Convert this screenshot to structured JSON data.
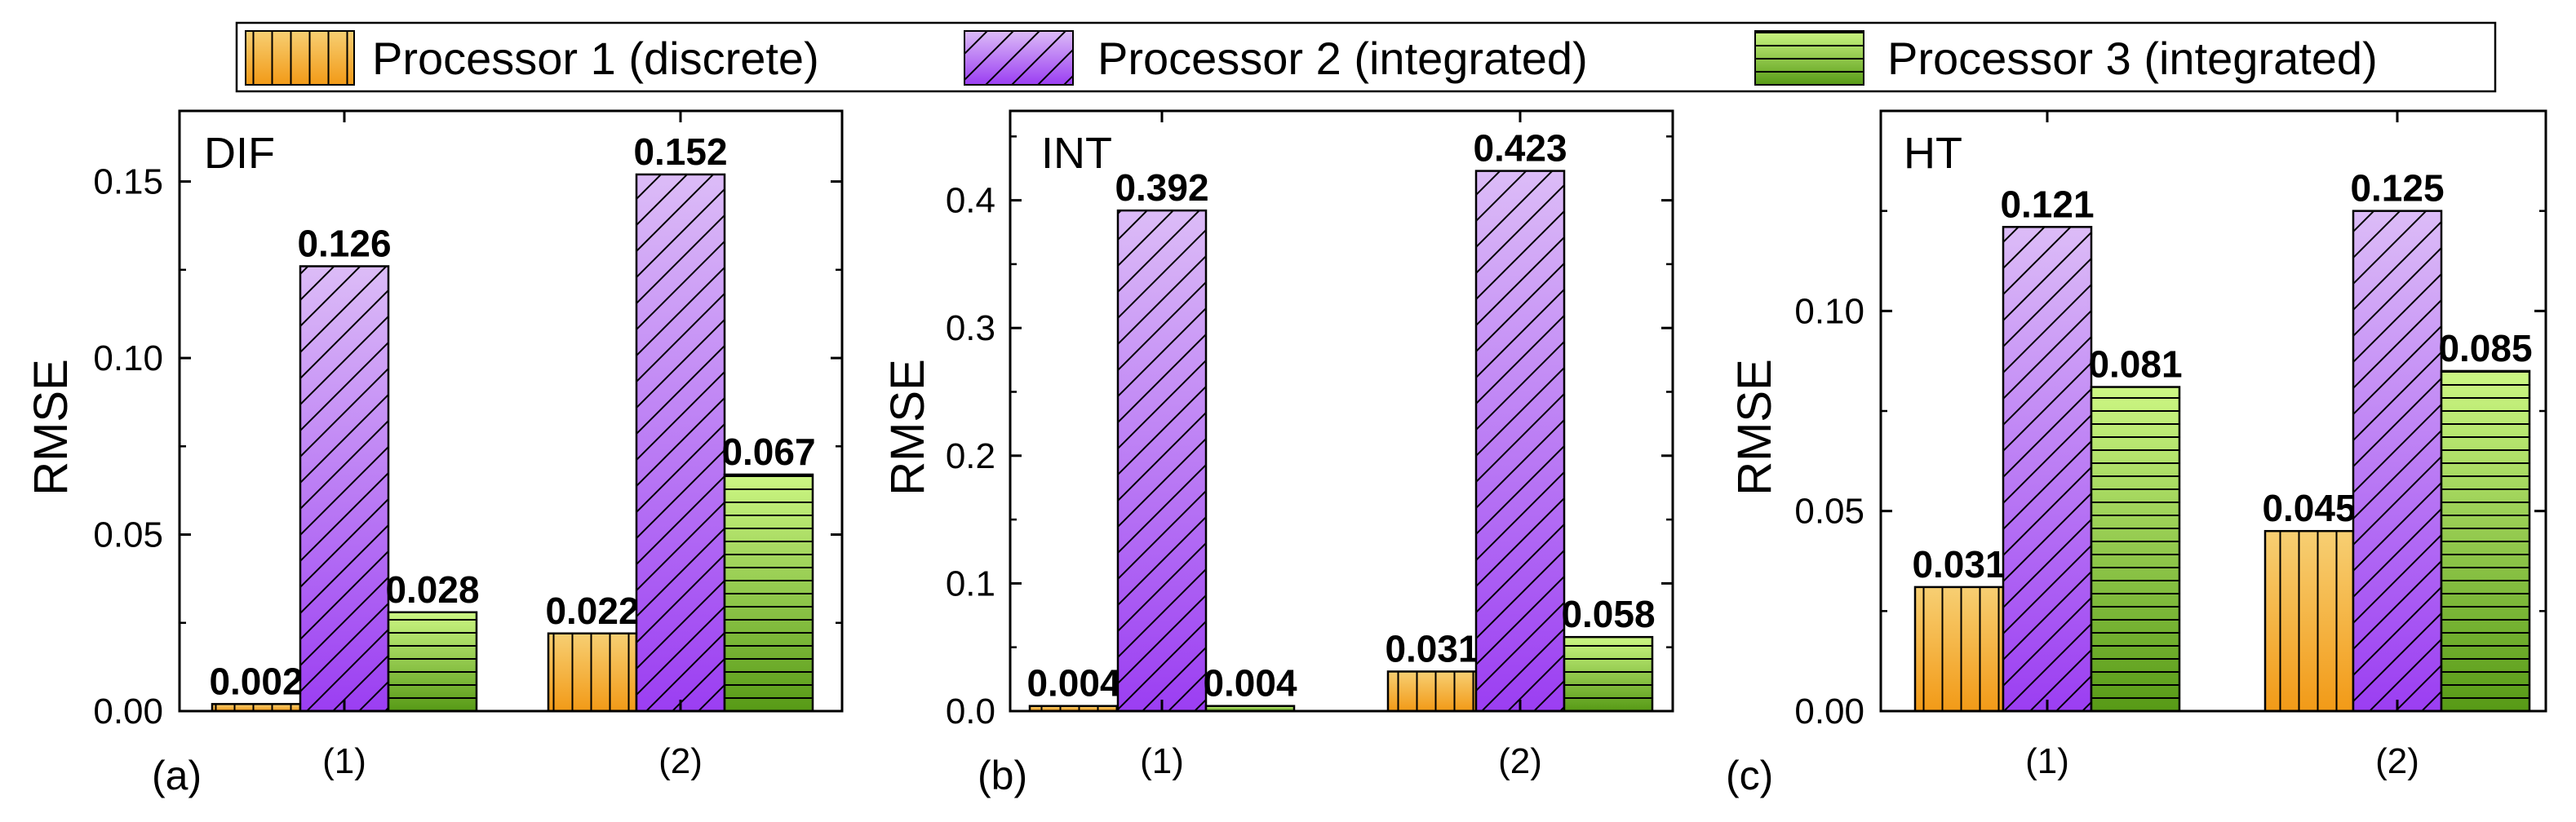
{
  "chart_data": [
    {
      "type": "bar",
      "panel": "(a)",
      "title": "DIF",
      "ylabel": "RMSE",
      "categories": [
        "(1)",
        "(2)"
      ],
      "ylim": [
        0,
        0.17
      ],
      "yticks": [
        0.0,
        0.05,
        0.1,
        0.15
      ],
      "ytick_labels": [
        "0.00",
        "0.05",
        "0.10",
        "0.15"
      ],
      "series": [
        {
          "name": "Processor 1 (discrete)",
          "values": [
            0.002,
            0.022
          ],
          "labels": [
            "0.002",
            "0.022"
          ]
        },
        {
          "name": "Processor 2 (integrated)",
          "values": [
            0.126,
            0.152
          ],
          "labels": [
            "0.126",
            "0.152"
          ]
        },
        {
          "name": "Processor 3 (integrated)",
          "values": [
            0.028,
            0.067
          ],
          "labels": [
            "0.028",
            "0.067"
          ]
        }
      ]
    },
    {
      "type": "bar",
      "panel": "(b)",
      "title": "INT",
      "ylabel": "RMSE",
      "categories": [
        "(1)",
        "(2)"
      ],
      "ylim": [
        0,
        0.47
      ],
      "yticks": [
        0.0,
        0.1,
        0.2,
        0.3,
        0.4
      ],
      "ytick_labels": [
        "0.0",
        "0.1",
        "0.2",
        "0.3",
        "0.4"
      ],
      "series": [
        {
          "name": "Processor 1 (discrete)",
          "values": [
            0.004,
            0.031
          ],
          "labels": [
            "0.004",
            "0.031"
          ]
        },
        {
          "name": "Processor 2 (integrated)",
          "values": [
            0.392,
            0.423
          ],
          "labels": [
            "0.392",
            "0.423"
          ]
        },
        {
          "name": "Processor 3 (integrated)",
          "values": [
            0.004,
            0.058
          ],
          "labels": [
            "0.004",
            "0.058"
          ]
        }
      ]
    },
    {
      "type": "bar",
      "panel": "(c)",
      "title": "HT",
      "ylabel": "RMSE",
      "categories": [
        "(1)",
        "(2)"
      ],
      "ylim": [
        0,
        0.15
      ],
      "yticks": [
        0.0,
        0.05,
        0.1
      ],
      "ytick_labels": [
        "0.00",
        "0.05",
        "0.10"
      ],
      "series": [
        {
          "name": "Processor 1 (discrete)",
          "values": [
            0.031,
            0.045
          ],
          "labels": [
            "0.031",
            "0.045"
          ]
        },
        {
          "name": "Processor 2 (integrated)",
          "values": [
            0.121,
            0.125
          ],
          "labels": [
            "0.121",
            "0.125"
          ]
        },
        {
          "name": "Processor 3 (integrated)",
          "values": [
            0.081,
            0.085
          ],
          "labels": [
            "0.081",
            "0.085"
          ]
        }
      ]
    }
  ],
  "legend": {
    "position": "top-center",
    "entries": [
      "Processor 1 (discrete)",
      "Processor 2 (integrated)",
      "Processor 3 (integrated)"
    ]
  },
  "colors": {
    "processor1": [
      "#f7c766",
      "#f29a1a"
    ],
    "processor2": [
      "#d7b3f6",
      "#9a3ff0"
    ],
    "processor3": [
      "#c6f57a",
      "#5a9c18"
    ]
  }
}
